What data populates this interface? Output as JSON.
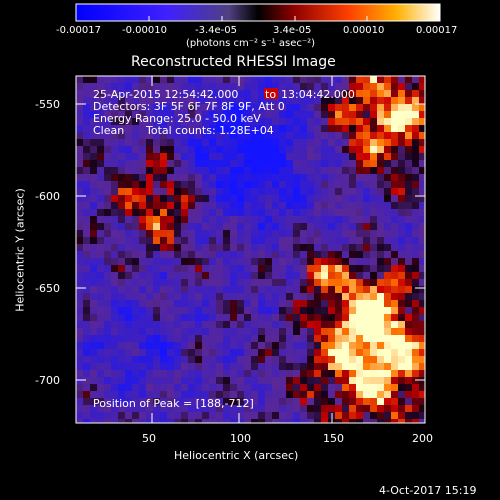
{
  "colorbar": {
    "ticks": [
      "-0.00017",
      "-0.00010",
      "-3.4e-05",
      "3.4e-05",
      "0.00010",
      "0.00017"
    ],
    "units_label": "(photons cm⁻² s⁻¹ asec⁻²)"
  },
  "plot": {
    "title": "Reconstructed RHESSI Image",
    "xlabel": "Heliocentric X (arcsec)",
    "ylabel": "Heliocentric Y (arcsec)",
    "xticks": [
      "50",
      "100",
      "150",
      "200"
    ],
    "yticks": [
      "-550",
      "-600",
      "-650",
      "-700"
    ],
    "xlim": [
      10,
      200
    ],
    "ylim": [
      -725,
      -530
    ]
  },
  "annotations": {
    "time_start": "25-Apr-2015 12:54:42.000",
    "time_to": "to",
    "time_end": "13:04:42.000",
    "detectors": "Detectors: 3F 5F 6F 7F 8F 9F, Att 0",
    "energy": "Energy Range: 25.0 - 50.0 keV",
    "clean": "Clean",
    "counts": "Total counts: 1.28E+04",
    "peak": "Position of Peak = [188,-712]"
  },
  "footer": {
    "date": "4-Oct-2017 15:19"
  },
  "colors": {
    "background": "#000000",
    "foreground": "#ffffff",
    "cmap_low": "#0000ff",
    "cmap_mid": "#000000",
    "cmap_high": "#ffffff",
    "to_badge": "#cc0000"
  }
}
